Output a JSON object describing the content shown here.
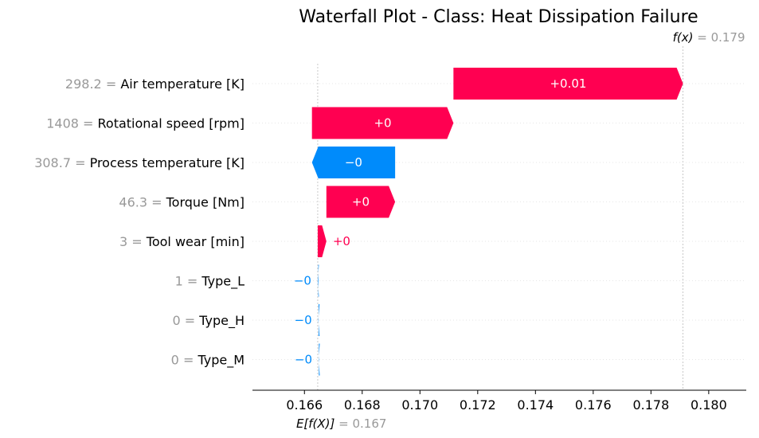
{
  "chart_data": {
    "type": "waterfall",
    "title": "Waterfall Plot - Class: Heat Dissipation Failure",
    "base_value": 0.16646,
    "base_label": "E[f(X)]",
    "base_value_text": "= 0.167",
    "final_value": 0.17911,
    "final_label": "f(x)",
    "final_value_text": "= 0.179",
    "xlim": [
      0.1642,
      0.1813
    ],
    "xticks": [
      0.166,
      0.168,
      0.17,
      0.172,
      0.174,
      0.176,
      0.178,
      0.18
    ],
    "xtick_labels": [
      "0.166",
      "0.168",
      "0.170",
      "0.172",
      "0.174",
      "0.176",
      "0.178",
      "0.180"
    ],
    "colors": {
      "positive": "#ff0051",
      "negative": "#008bfb",
      "grid": "#cccccc",
      "value_text": "#999999"
    },
    "features": [
      {
        "value": "298.2",
        "name": "Air temperature [K]",
        "start": 0.17116,
        "end": 0.17911,
        "label": "+0.01"
      },
      {
        "value": "1408",
        "name": "Rotational speed [rpm]",
        "start": 0.16626,
        "end": 0.17116,
        "label": "+0"
      },
      {
        "value": "308.7",
        "name": "Process temperature [K]",
        "start": 0.16914,
        "end": 0.16626,
        "label": "−0"
      },
      {
        "value": "46.3",
        "name": "Torque [Nm]",
        "start": 0.16676,
        "end": 0.16914,
        "label": "+0"
      },
      {
        "value": "3",
        "name": "Tool wear [min]",
        "start": 0.16646,
        "end": 0.16676,
        "label": "+0"
      },
      {
        "value": "1",
        "name": "Type_L",
        "start": 0.16648,
        "end": 0.16646,
        "label": "−0"
      },
      {
        "value": "0",
        "name": "Type_H",
        "start": 0.16649,
        "end": 0.16648,
        "label": "−0"
      },
      {
        "value": "0",
        "name": "Type_M",
        "start": 0.1665,
        "end": 0.16649,
        "label": "−0"
      }
    ]
  }
}
